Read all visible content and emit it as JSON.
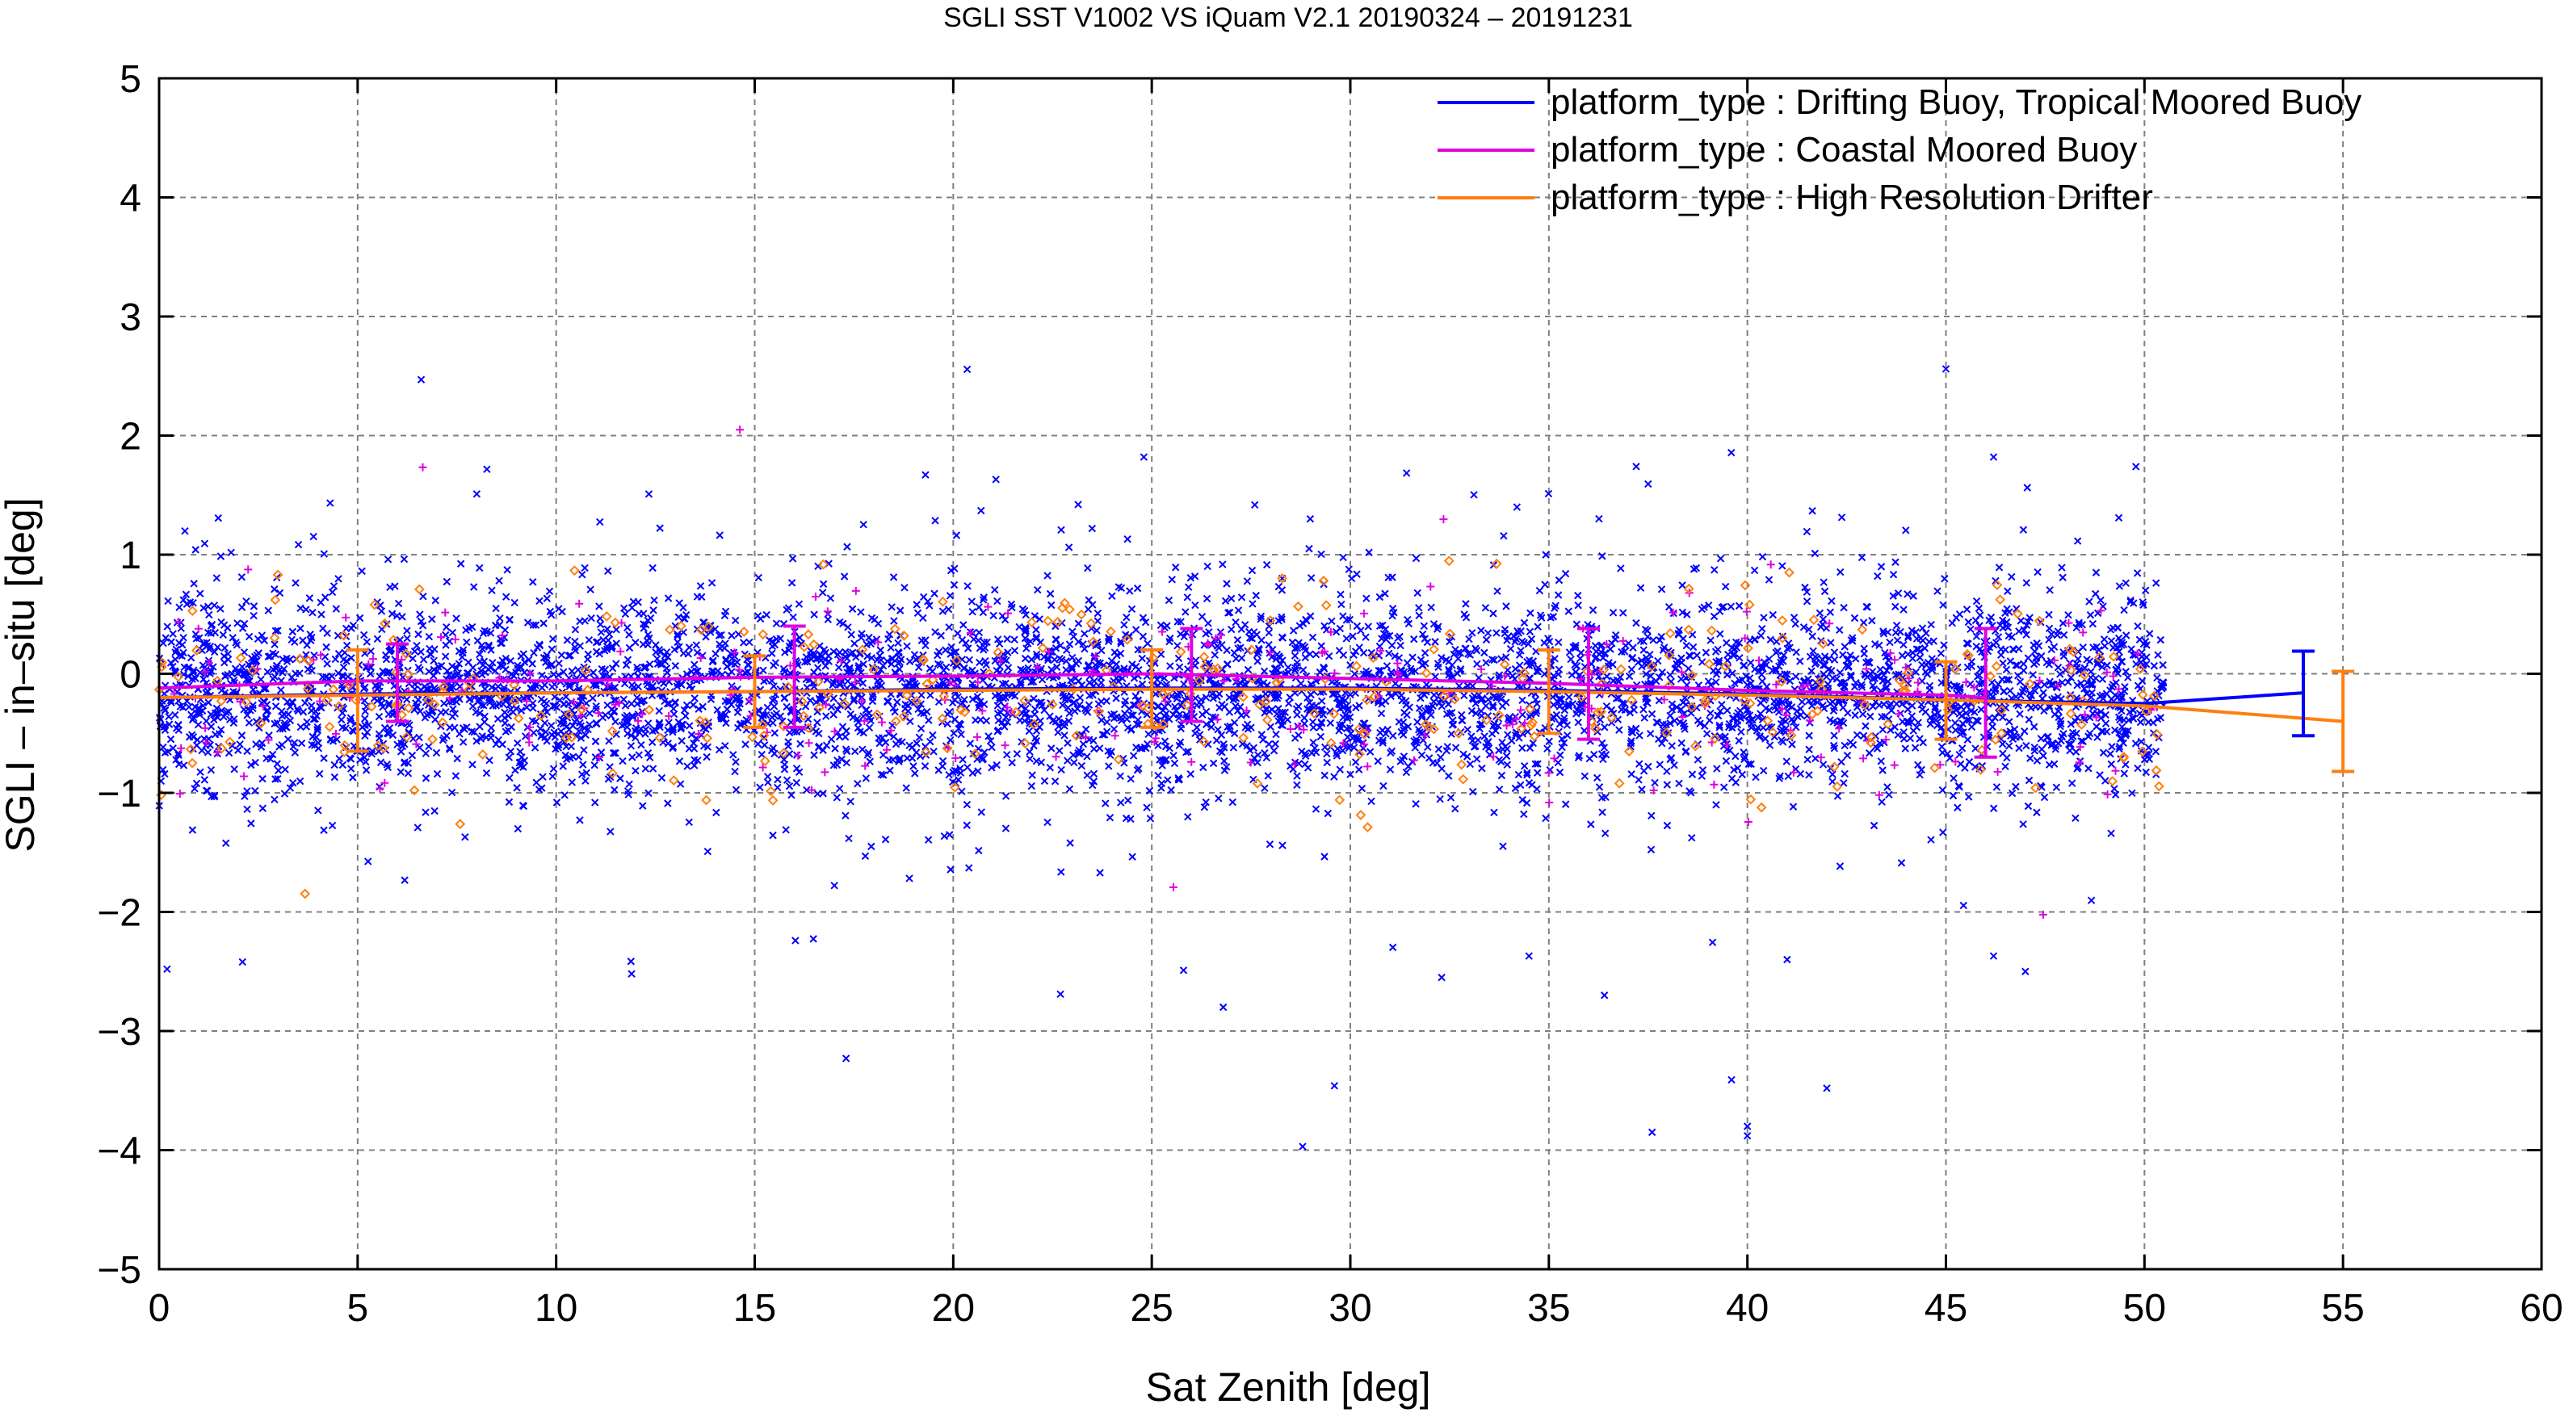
{
  "chart_data": {
    "type": "scatter",
    "title": "SGLI SST V1002 VS iQuam V2.1 20190324 – 20191231",
    "xlabel": "Sat Zenith [deg]",
    "ylabel": "SGLI – in–situ [deg]",
    "xlim": [
      0,
      60
    ],
    "ylim": [
      -5,
      5
    ],
    "xticks": [
      "0",
      "5",
      "10",
      "15",
      "20",
      "25",
      "30",
      "35",
      "40",
      "45",
      "50",
      "55",
      "60"
    ],
    "yticks": [
      "5",
      "4",
      "3",
      "2",
      "1",
      "0",
      "−1",
      "−2",
      "−3",
      "−4",
      "−5"
    ],
    "grid": true,
    "legend_position": "top-right",
    "series": [
      {
        "name": "platform_type : Drifting Buoy, Tropical Moored Buoy",
        "color": "#0000ff",
        "marker": "x",
        "mean_line": {
          "x": [
            0,
            5,
            10,
            15,
            20,
            25,
            30,
            35,
            40,
            45,
            50,
            54
          ],
          "y": [
            -0.2,
            -0.17,
            -0.16,
            -0.15,
            -0.13,
            -0.12,
            -0.12,
            -0.14,
            -0.17,
            -0.22,
            -0.25,
            -0.16
          ]
        },
        "errorbars": [
          {
            "x": 54,
            "y": -0.16,
            "low": -0.52,
            "high": 0.19
          }
        ],
        "outliers": [
          {
            "x": 6.6,
            "y": 2.47
          },
          {
            "x": 45.0,
            "y": 2.56
          },
          {
            "x": 24.8,
            "y": 1.82
          },
          {
            "x": 19.3,
            "y": 1.67
          },
          {
            "x": 37.2,
            "y": 1.74
          },
          {
            "x": 46.2,
            "y": 1.82
          },
          {
            "x": 8.0,
            "y": 1.51
          },
          {
            "x": 20.7,
            "y": 1.37
          },
          {
            "x": 0.2,
            "y": -2.48
          },
          {
            "x": 2.1,
            "y": -2.42
          },
          {
            "x": 11.9,
            "y": -2.52
          },
          {
            "x": 17.3,
            "y": -3.23
          },
          {
            "x": 26.8,
            "y": -2.8
          },
          {
            "x": 28.8,
            "y": -3.97
          },
          {
            "x": 29.6,
            "y": -3.46
          },
          {
            "x": 32.3,
            "y": -2.55
          },
          {
            "x": 36.4,
            "y": -2.7
          },
          {
            "x": 37.6,
            "y": -3.85
          },
          {
            "x": 39.6,
            "y": -3.41
          },
          {
            "x": 40.0,
            "y": -3.8
          },
          {
            "x": 40.0,
            "y": -3.88
          },
          {
            "x": 42.0,
            "y": -3.48
          },
          {
            "x": 41.0,
            "y": -2.4
          },
          {
            "x": 47.0,
            "y": -2.5
          },
          {
            "x": 22.7,
            "y": -2.69
          },
          {
            "x": 25.8,
            "y": -2.49
          },
          {
            "x": 34.5,
            "y": -2.37
          },
          {
            "x": 46.2,
            "y": -2.37
          }
        ]
      },
      {
        "name": "platform_type : Coastal Moored Buoy",
        "color": "#e000e0",
        "marker": "+",
        "mean_line": {
          "x": [
            0,
            5,
            10,
            15,
            20,
            25,
            30,
            35,
            40,
            45,
            46
          ],
          "y": [
            -0.12,
            -0.06,
            -0.06,
            -0.03,
            -0.02,
            0.0,
            -0.04,
            -0.08,
            -0.14,
            -0.18,
            -0.2
          ]
        },
        "errorbars": [
          {
            "x": 6,
            "y": -0.08,
            "low": -0.4,
            "high": 0.25
          },
          {
            "x": 16,
            "y": -0.04,
            "low": -0.45,
            "high": 0.4
          },
          {
            "x": 26,
            "y": -0.02,
            "low": -0.4,
            "high": 0.38
          },
          {
            "x": 36,
            "y": -0.1,
            "low": -0.55,
            "high": 0.38
          },
          {
            "x": 46,
            "y": -0.2,
            "low": -0.7,
            "high": 0.38
          }
        ]
      },
      {
        "name": "platform_type : High Resolution Drifter",
        "color": "#ff7f0e",
        "marker": "diamond",
        "mean_line": {
          "x": [
            0,
            5,
            10,
            15,
            20,
            25,
            30,
            35,
            40,
            45,
            50,
            55
          ],
          "y": [
            -0.2,
            -0.18,
            -0.16,
            -0.15,
            -0.14,
            -0.13,
            -0.13,
            -0.15,
            -0.18,
            -0.22,
            -0.27,
            -0.4
          ]
        },
        "errorbars": [
          {
            "x": 5,
            "y": -0.18,
            "low": -0.65,
            "high": 0.2
          },
          {
            "x": 15,
            "y": -0.15,
            "low": -0.45,
            "high": 0.15
          },
          {
            "x": 25,
            "y": -0.13,
            "low": -0.45,
            "high": 0.2
          },
          {
            "x": 35,
            "y": -0.15,
            "low": -0.5,
            "high": 0.2
          },
          {
            "x": 45,
            "y": -0.22,
            "low": -0.55,
            "high": 0.1
          },
          {
            "x": 55,
            "y": -0.4,
            "low": -0.82,
            "high": 0.02
          }
        ]
      }
    ],
    "scatter_cloud": {
      "x_range": [
        0,
        50.5
      ],
      "center_y": -0.15,
      "spread": 0.45,
      "points_per_series": [
        5200,
        260,
        330
      ]
    }
  }
}
